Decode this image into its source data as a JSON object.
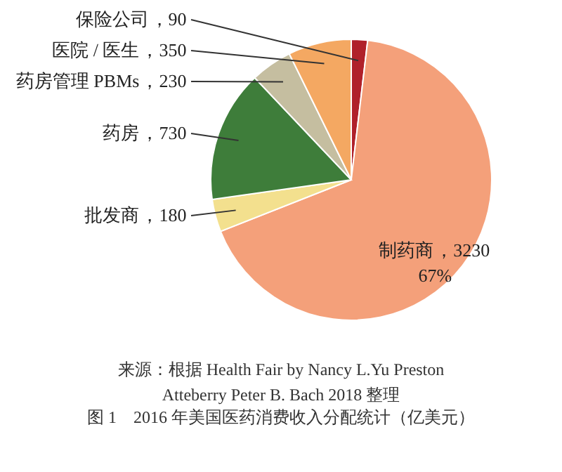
{
  "chart_data": {
    "type": "pie",
    "title": "图 1　2016 年美国医药消费收入分配统计（亿美元）",
    "categories": [
      "保险公司",
      "制药商",
      "批发商",
      "药房",
      "药房管理 PBMs",
      "医院 / 医生"
    ],
    "values": [
      90,
      3230,
      180,
      730,
      230,
      350
    ],
    "colors": [
      "#b0212a",
      "#f4a07a",
      "#f3e08e",
      "#3e7d3a",
      "#c5bea0",
      "#f4a862"
    ],
    "value_labels": [
      "，90",
      "，3230",
      "，180",
      "，730",
      "，230",
      "，350"
    ],
    "annotations": [
      "67%",
      "来源：根据 Health Fair by Nancy L.Yu Preston\nAtteberry Peter B. Bach 2018 整理"
    ]
  }
}
